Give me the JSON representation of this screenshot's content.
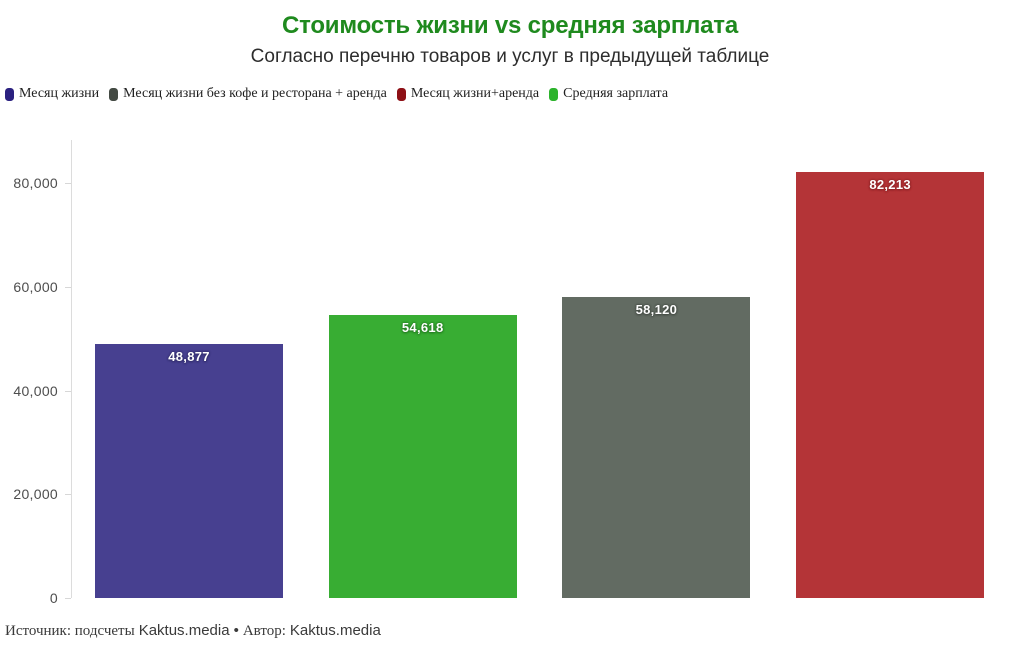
{
  "header": {
    "title": "Стоимость жизни vs средняя зарплата",
    "subtitle": "Согласно перечню товаров и услуг в предыдущей таблице"
  },
  "legend": {
    "position": "top-left",
    "items": [
      {
        "label": "Месяц жизни",
        "color": "#2b2180"
      },
      {
        "label": "Месяц жизни без кофе и ресторана + аренда",
        "color": "#434a43"
      },
      {
        "label": "Месяц жизни+аренда",
        "color": "#8e1016"
      },
      {
        "label": "Средняя зарплата",
        "color": "#2cb32c"
      }
    ]
  },
  "chart_data": {
    "type": "bar",
    "title": "Стоимость жизни vs средняя зарплата",
    "subtitle": "Согласно перечню товаров и услуг в предыдущей таблице",
    "categories": [
      "Месяц жизни",
      "Средняя зарплата",
      "Месяц жизни без кофе и ресторана + аренда",
      "Месяц жизни+аренда"
    ],
    "values": [
      48877,
      54618,
      58120,
      82213
    ],
    "value_labels": [
      "48,877",
      "54,618",
      "58,120",
      "82,213"
    ],
    "bar_colors": [
      "#474090",
      "#38ad33",
      "#626b62",
      "#b43437"
    ],
    "label_halo_colors": [
      "#332e6b",
      "#257a22",
      "#434a43",
      "#8e2327"
    ],
    "xlabel": "",
    "ylabel": "",
    "ylim": [
      0,
      80000
    ],
    "yticks": [
      0,
      20000,
      40000,
      60000,
      80000
    ],
    "ytick_labels": [
      "0",
      "20,000",
      "40,000",
      "60,000",
      "80,000"
    ],
    "grid": "none",
    "legend_position": "top-left"
  },
  "footer": {
    "source_label": "Источник: подсчеты",
    "source_brand": "Kaktus.media",
    "separator": "•",
    "author_label": "Автор:",
    "author_brand": "Kaktus.media"
  }
}
